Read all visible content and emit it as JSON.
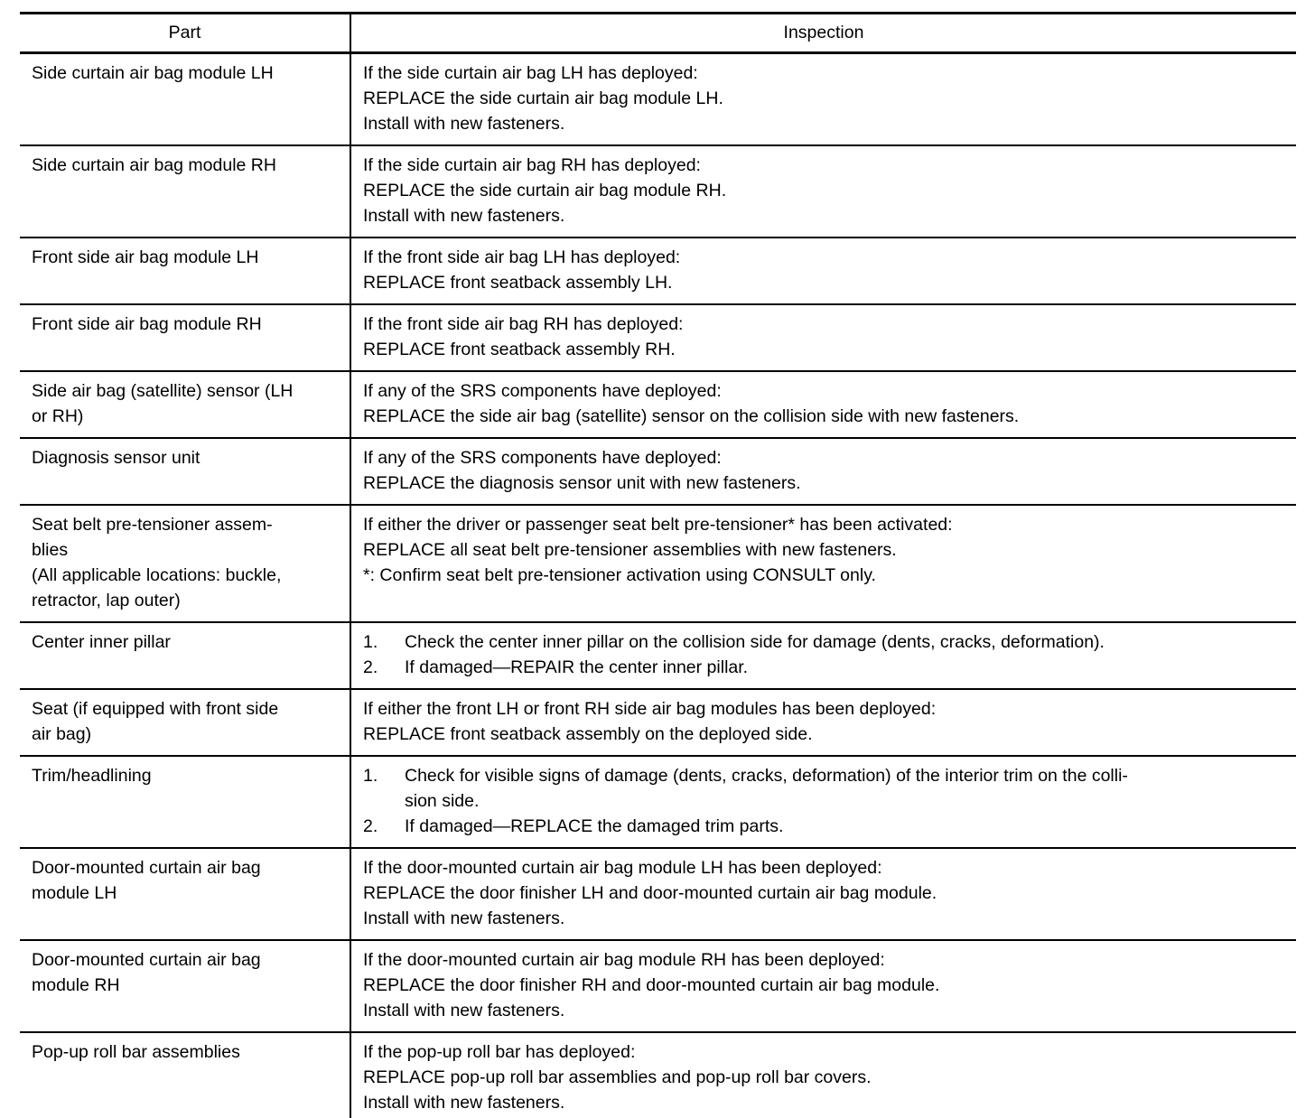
{
  "colors": {
    "background": "#ffffff",
    "text": "#000000",
    "border": "#000000"
  },
  "table": {
    "headers": {
      "part": "Part",
      "inspection": "Inspection"
    },
    "rows": [
      {
        "part": "Side curtain air bag module LH",
        "inspection": {
          "type": "lines",
          "lines": [
            "If the side curtain air bag LH has deployed:",
            "REPLACE the side curtain air bag module LH.",
            "Install with new fasteners."
          ]
        }
      },
      {
        "part": "Side curtain air bag module RH",
        "inspection": {
          "type": "lines",
          "lines": [
            "If the side curtain air bag RH has deployed:",
            "REPLACE the side curtain air bag module RH.",
            "Install with new fasteners."
          ]
        }
      },
      {
        "part": "Front side air bag module LH",
        "inspection": {
          "type": "lines",
          "lines": [
            "If the front side air bag LH has deployed:",
            "REPLACE front seatback assembly LH."
          ]
        }
      },
      {
        "part": "Front side air bag module RH",
        "inspection": {
          "type": "lines",
          "lines": [
            "If the front side air bag RH has deployed:",
            "REPLACE front seatback assembly RH."
          ]
        }
      },
      {
        "part": "Side air bag (satellite) sensor (LH\nor RH)",
        "inspection": {
          "type": "lines",
          "lines": [
            "If any of the SRS components have deployed:",
            "REPLACE the side air bag (satellite) sensor on the collision side with new fasteners."
          ]
        }
      },
      {
        "part": "Diagnosis sensor unit",
        "inspection": {
          "type": "lines",
          "lines": [
            "If any of the SRS components have deployed:",
            "REPLACE the diagnosis sensor unit with new fasteners."
          ]
        }
      },
      {
        "part": "Seat belt pre-tensioner assem-\nblies\n(All applicable locations: buckle,\nretractor, lap outer)",
        "inspection": {
          "type": "lines",
          "lines": [
            "If either the driver or passenger seat belt pre-tensioner* has been activated:",
            "REPLACE all seat belt pre-tensioner assemblies with new fasteners.",
            "*: Confirm seat belt pre-tensioner activation using CONSULT only."
          ]
        }
      },
      {
        "part": "Center inner pillar",
        "inspection": {
          "type": "list",
          "items": [
            {
              "num": "1.",
              "text": "Check the center inner pillar on the collision side for damage (dents, cracks, deformation)."
            },
            {
              "num": "2.",
              "text": "If damaged—REPAIR the center inner pillar."
            }
          ]
        }
      },
      {
        "part": "Seat (if equipped with front side\nair bag)",
        "inspection": {
          "type": "lines",
          "lines": [
            "If either the front LH or front RH side air bag modules has been deployed:",
            "REPLACE front seatback assembly on the deployed side."
          ]
        }
      },
      {
        "part": "Trim/headlining",
        "inspection": {
          "type": "list",
          "items": [
            {
              "num": "1.",
              "text": "Check for visible signs of damage (dents, cracks, deformation) of the interior trim on the colli-\nsion side."
            },
            {
              "num": "2.",
              "text": "If damaged—REPLACE the damaged trim parts."
            }
          ]
        }
      },
      {
        "part": "Door-mounted curtain air bag\nmodule LH",
        "inspection": {
          "type": "lines",
          "lines": [
            "If the door-mounted curtain air bag module LH has been deployed:",
            "REPLACE the door finisher LH and door-mounted curtain air bag module.",
            "Install with new fasteners."
          ]
        }
      },
      {
        "part": "Door-mounted curtain air bag\nmodule RH",
        "inspection": {
          "type": "lines",
          "lines": [
            "If the door-mounted curtain air bag module RH has been deployed:",
            "REPLACE the door finisher RH and door-mounted curtain air bag module.",
            "Install with new fasteners."
          ]
        }
      },
      {
        "part": "Pop-up roll bar assemblies",
        "inspection": {
          "type": "lines",
          "lines": [
            "If the pop-up roll bar has deployed:",
            "REPLACE pop-up roll bar assemblies and pop-up roll bar covers.",
            "Install with new fasteners."
          ]
        }
      }
    ]
  }
}
